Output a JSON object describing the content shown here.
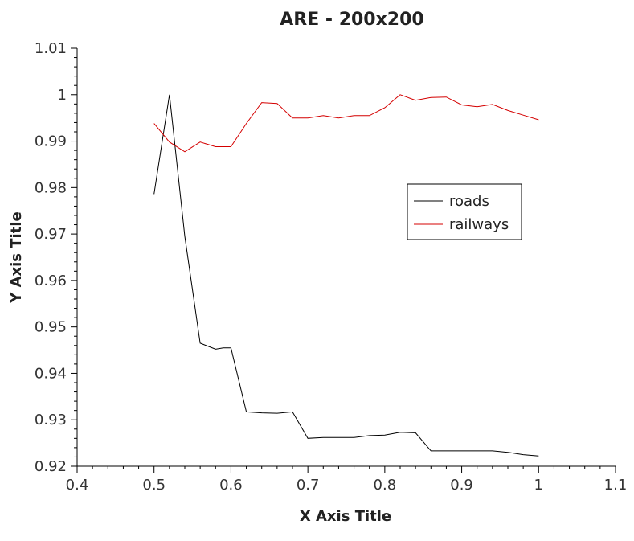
{
  "chart_data": {
    "type": "line",
    "title": "ARE - 200x200",
    "xlabel": "X Axis Title",
    "ylabel": "Y Axis Title",
    "xlim": [
      0.4,
      1.1
    ],
    "ylim": [
      0.92,
      1.01
    ],
    "xticks": [
      "0.4",
      "0.5",
      "0.6",
      "0.7",
      "0.8",
      "0.9",
      "1",
      "1.1"
    ],
    "yticks": [
      "0.92",
      "0.93",
      "0.94",
      "0.95",
      "0.96",
      "0.97",
      "0.98",
      "0.99",
      "1",
      "1.01"
    ],
    "grid": false,
    "legend_position": "center-right",
    "series": [
      {
        "name": "roads",
        "color": "#000000",
        "x": [
          0.5,
          0.52,
          0.54,
          0.56,
          0.58,
          0.59,
          0.6,
          0.62,
          0.64,
          0.66,
          0.68,
          0.7,
          0.72,
          0.74,
          0.76,
          0.78,
          0.8,
          0.82,
          0.84,
          0.86,
          0.88,
          0.9,
          0.92,
          0.94,
          0.96,
          0.98,
          1.0
        ],
        "y": [
          0.9786,
          1.0,
          0.9695,
          0.9465,
          0.9452,
          0.9455,
          0.9455,
          0.9317,
          0.9315,
          0.9314,
          0.9317,
          0.926,
          0.9262,
          0.9262,
          0.9262,
          0.9266,
          0.9267,
          0.9273,
          0.9272,
          0.9233,
          0.9233,
          0.9233,
          0.9233,
          0.9233,
          0.923,
          0.9225,
          0.9222
        ]
      },
      {
        "name": "railways",
        "color": "#d40000",
        "x": [
          0.5,
          0.52,
          0.54,
          0.56,
          0.58,
          0.6,
          0.62,
          0.64,
          0.66,
          0.68,
          0.7,
          0.72,
          0.74,
          0.76,
          0.78,
          0.8,
          0.82,
          0.84,
          0.86,
          0.88,
          0.9,
          0.92,
          0.94,
          0.96,
          0.98,
          1.0
        ],
        "y": [
          0.9938,
          0.9898,
          0.9877,
          0.9898,
          0.9888,
          0.9888,
          0.9938,
          0.9983,
          0.9981,
          0.995,
          0.995,
          0.9955,
          0.995,
          0.9955,
          0.9955,
          0.9972,
          1.0,
          0.9988,
          0.9994,
          0.9995,
          0.9978,
          0.9974,
          0.9979,
          0.9966,
          0.9956,
          0.9946
        ]
      }
    ]
  }
}
